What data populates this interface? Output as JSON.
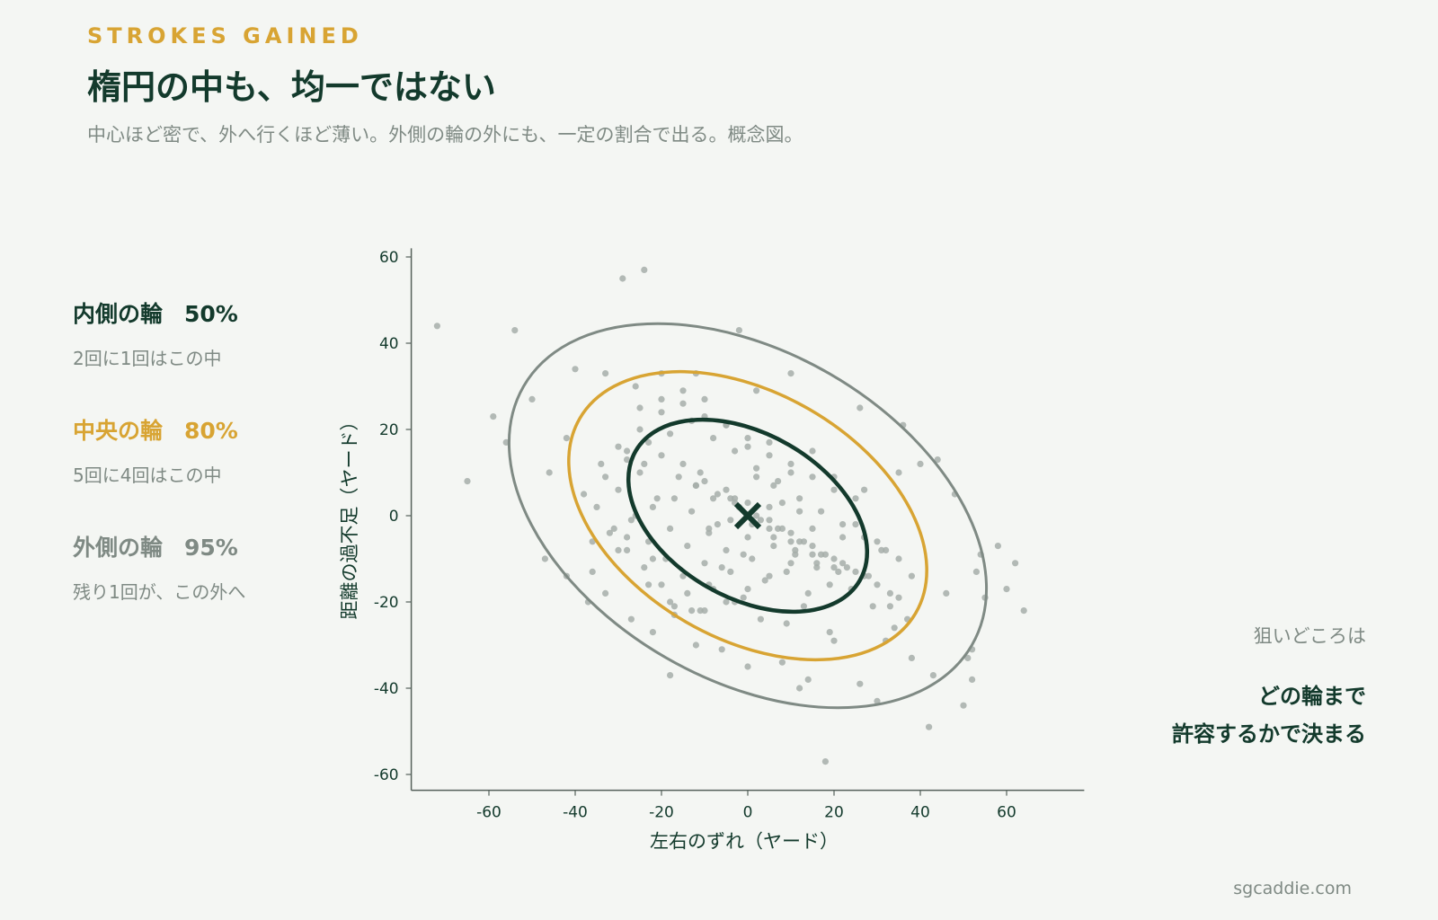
{
  "header": {
    "eyebrow": "STROKES GAINED",
    "title": "楕円の中も、均一ではない",
    "subtitle": "中心ほど密で、外へ行くほど薄い。外側の輪の外にも、一定の割合で出る。概念図。"
  },
  "legend": [
    {
      "label": "内側の輪",
      "percent": "50%",
      "description": "2回に1回はこの中",
      "color": "#133a2c"
    },
    {
      "label": "中央の輪",
      "percent": "80%",
      "description": "5回に4回はこの中",
      "color": "#d8a433"
    },
    {
      "label": "外側の輪",
      "percent": "95%",
      "description": "残り1回が、この外へ",
      "color": "#7f8a84"
    }
  ],
  "note": {
    "lead": "狙いどころは",
    "line1": "どの輪まで",
    "line2": "許容するかで決まる"
  },
  "footer": {
    "brand": "sgcaddie.com"
  },
  "colors": {
    "inner": "#133a2c",
    "middle": "#d8a433",
    "outer": "#7f8a84",
    "points": "#a6aea9",
    "background": "#f4f6f3"
  },
  "chart_data": {
    "type": "scatter",
    "xlabel": "左右のずれ（ヤード）",
    "ylabel": "距離の過不足（ヤード）",
    "xlim": [
      -78,
      78
    ],
    "ylim": [
      -62,
      62
    ],
    "xticks": [
      -60,
      -40,
      -20,
      0,
      20,
      40,
      60
    ],
    "yticks": [
      -60,
      -40,
      -20,
      0,
      20,
      40,
      60
    ],
    "target": {
      "x": 0,
      "y": 0,
      "marker": "x"
    },
    "ellipses": [
      {
        "name": "外側の輪",
        "level": 0.95,
        "center": [
          0,
          0
        ],
        "semi_major": 60,
        "semi_minor": 38,
        "angle_deg": -30,
        "color": "#7f8a84"
      },
      {
        "name": "中央の輪",
        "level": 0.8,
        "center": [
          0,
          0
        ],
        "semi_major": 45,
        "semi_minor": 28.5,
        "angle_deg": -30,
        "color": "#d8a433"
      },
      {
        "name": "内側の輪",
        "level": 0.5,
        "center": [
          0,
          0
        ],
        "semi_major": 30,
        "semi_minor": 19,
        "angle_deg": -30,
        "color": "#133a2c"
      }
    ],
    "points": {
      "x": [
        -72,
        -65,
        -59,
        -56,
        -54,
        -50,
        -46,
        -42,
        -40,
        -36,
        -34,
        -33,
        -30,
        -29,
        -28,
        -26,
        -24,
        -23,
        -22,
        -20,
        -18,
        -17,
        -12,
        -11,
        -2,
        -1,
        2,
        8,
        10,
        14,
        20,
        26,
        30,
        32,
        36,
        38,
        40,
        42,
        44,
        46,
        48,
        50,
        51,
        52,
        53,
        54,
        55,
        58,
        60,
        62,
        64,
        52,
        43,
        26,
        18,
        12,
        0,
        -6,
        -12,
        -18,
        -22,
        -27,
        -33,
        -37,
        -42,
        -47,
        -3,
        -7,
        5,
        8,
        12,
        15,
        22,
        27,
        31,
        35,
        -25,
        -20,
        -15,
        -10,
        -5,
        0,
        5,
        10,
        15,
        20,
        25,
        30,
        35,
        38,
        -38,
        -33,
        -28,
        -23,
        -18,
        -13,
        -8,
        -3,
        2,
        7,
        12,
        17,
        22,
        27,
        32,
        -35,
        -30,
        -25,
        -20,
        -15,
        -10,
        -5,
        0,
        5,
        10,
        15,
        20,
        25,
        30,
        35,
        -32,
        -27,
        -22,
        -17,
        -12,
        -7,
        -2,
        3,
        8,
        13,
        18,
        23,
        28,
        33,
        -28,
        -23,
        -18,
        -13,
        -8,
        -3,
        2,
        7,
        12,
        17,
        22,
        27,
        -24,
        -19,
        -14,
        -9,
        -4,
        1,
        6,
        11,
        16,
        21,
        -20,
        -15,
        -10,
        -5,
        0,
        5,
        10,
        15,
        20,
        -14,
        -9,
        -4,
        1,
        6,
        11,
        16,
        -10,
        -5,
        0,
        5,
        10,
        -20,
        -25,
        -30,
        -15,
        -10,
        -5,
        0,
        5,
        10,
        15,
        20,
        25,
        -28,
        -24,
        -16,
        -6,
        4,
        14,
        24,
        33,
        37,
        -36,
        -31,
        -26,
        -21,
        -11,
        -1,
        9,
        19,
        29,
        34,
        -12,
        -8,
        -4,
        2,
        6,
        -17,
        -13,
        -9,
        -3,
        3,
        9,
        13,
        19
      ],
      "y": [
        44,
        8,
        23,
        17,
        43,
        27,
        10,
        18,
        34,
        -13,
        12,
        33,
        -8,
        55,
        -5,
        30,
        57,
        -16,
        -10,
        33,
        -20,
        -23,
        33,
        -22,
        43,
        -19,
        29,
        -34,
        33,
        -38,
        -29,
        25,
        -43,
        -29,
        21,
        -33,
        12,
        -49,
        13,
        -18,
        5,
        -44,
        -33,
        -31,
        -13,
        -9,
        -19,
        -7,
        -17,
        -11,
        -22,
        -38,
        -37,
        -39,
        -57,
        -40,
        -35,
        -31,
        -30,
        -37,
        -27,
        -24,
        -18,
        -20,
        -14,
        -10,
        4,
        -2,
        2,
        3,
        1,
        -3,
        -5,
        6,
        -8,
        10,
        25,
        27,
        29,
        23,
        21,
        16,
        14,
        10,
        9,
        6,
        -2,
        -6,
        -10,
        -14,
        5,
        9,
        13,
        17,
        19,
        22,
        18,
        15,
        11,
        8,
        4,
        1,
        -2,
        -5,
        -8,
        2,
        6,
        10,
        14,
        12,
        8,
        6,
        3,
        -1,
        -4,
        -7,
        -10,
        -13,
        -16,
        -19,
        -4,
        -1,
        2,
        4,
        7,
        5,
        2,
        -1,
        -3,
        -6,
        -9,
        -12,
        -14,
        -18,
        -8,
        -6,
        -3,
        1,
        4,
        3,
        0,
        -3,
        -6,
        -9,
        -11,
        -14,
        -12,
        -10,
        -7,
        -4,
        -1,
        -2,
        -5,
        -8,
        -11,
        -13,
        -16,
        -14,
        -11,
        -8,
        -5,
        -3,
        -6,
        -9,
        -12,
        -18,
        -16,
        -13,
        -10,
        -7,
        -9,
        -12,
        -22,
        -20,
        -17,
        -14,
        -11,
        24,
        20,
        16,
        26,
        27,
        21,
        18,
        17,
        12,
        15,
        9,
        4,
        15,
        12,
        9,
        -12,
        -15,
        -18,
        -17,
        -21,
        -24,
        -6,
        -3,
        0,
        4,
        10,
        -9,
        -13,
        -16,
        -21,
        -26,
        7,
        -17,
        4,
        9,
        7,
        -21,
        -22,
        -3,
        -20,
        -24,
        -25,
        -21,
        -27
      ]
    }
  }
}
